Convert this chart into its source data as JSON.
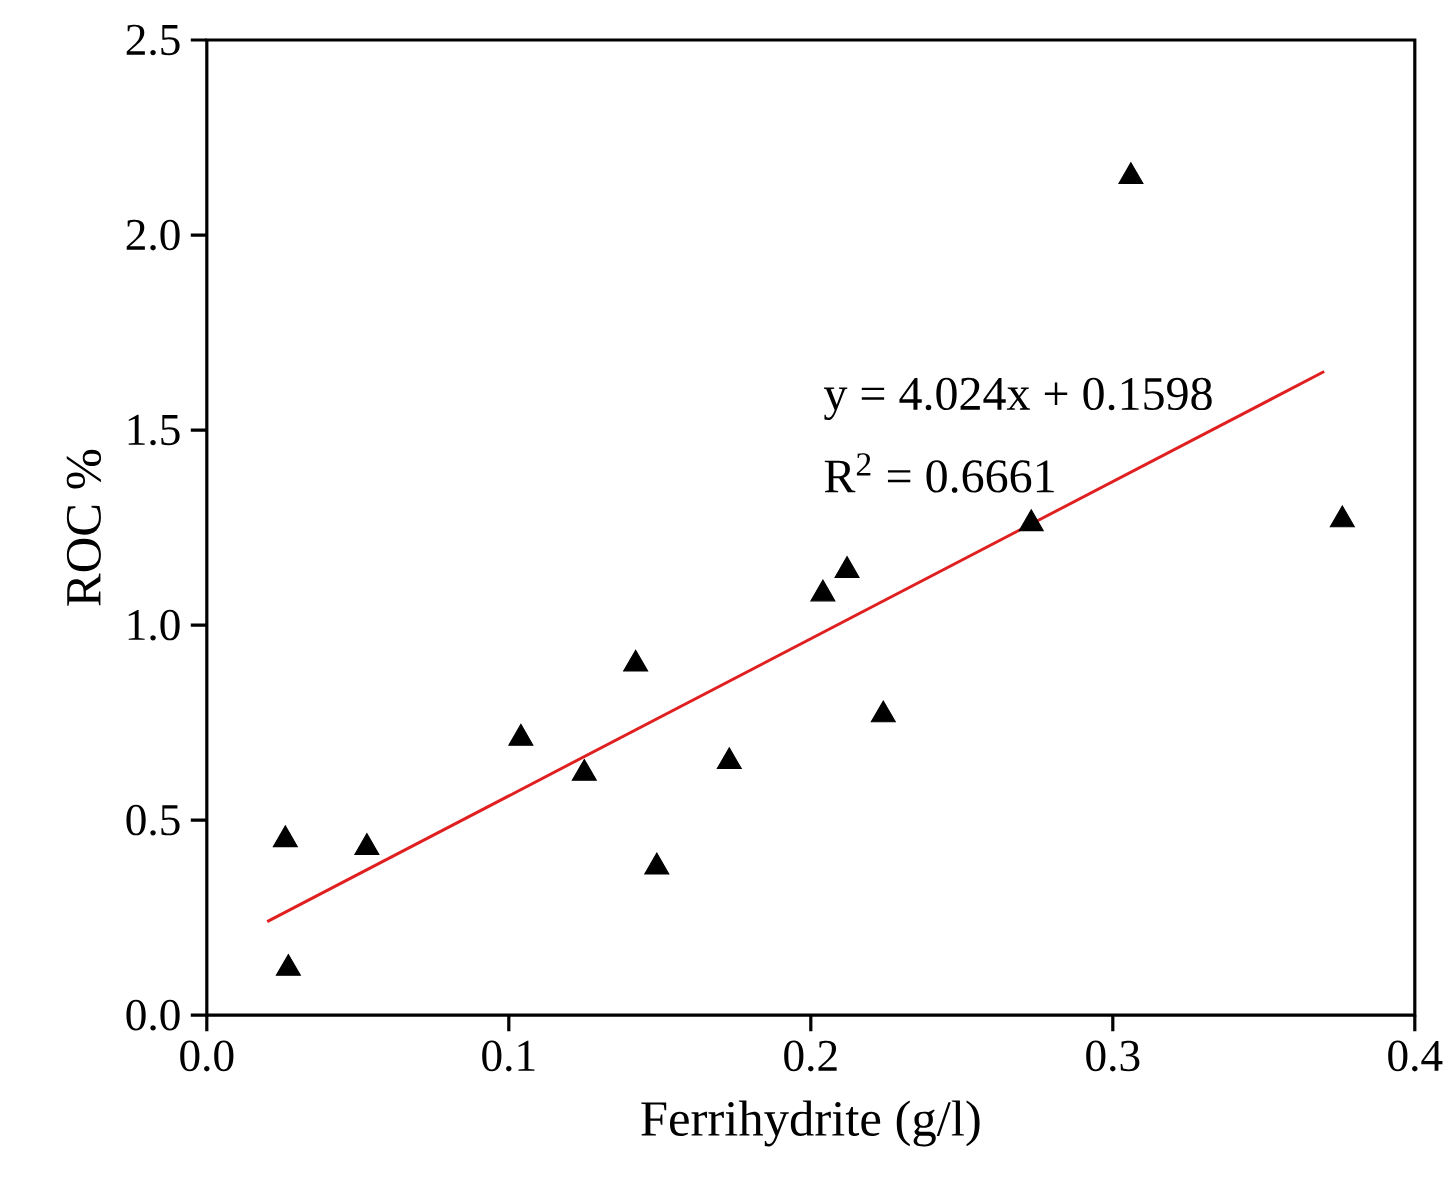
{
  "chart_data": {
    "type": "scatter",
    "xlabel": "Ferrihydrite (g/l)",
    "ylabel": "ROC %",
    "xlim": [
      0,
      0.4
    ],
    "xticks": [
      {
        "value": 0,
        "label": "0.0"
      },
      0.1,
      0.2,
      0.3,
      0.4
    ],
    "ylim": [
      0,
      2.5
    ],
    "yticks": [
      {
        "value": 0,
        "label": "0.0"
      },
      0.5,
      {
        "value": 1,
        "label": "1.0"
      },
      1.5,
      {
        "value": 2,
        "label": "2.0"
      },
      2.5
    ],
    "marker": "triangle",
    "annotations": [
      "y = 4.024x + 0.1598",
      "R$^{2}$ = 0.6661"
    ],
    "series": [
      {
        "color": "#000000",
        "x": [
          0.026,
          0.027,
          0.053,
          0.104,
          0.125,
          0.142,
          0.149,
          0.173,
          0.204,
          0.212,
          0.224,
          0.273,
          0.306,
          0.376
        ],
        "values": [
          0.45,
          0.12,
          0.43,
          0.71,
          0.62,
          0.9,
          0.38,
          0.65,
          1.08,
          1.14,
          0.77,
          1.26,
          2.15,
          1.27
        ]
      },
      {
        "type": "line",
        "color": "#e02020",
        "marker": "none",
        "x": [
          0.02,
          0.37
        ],
        "values": [
          0.24,
          1.65
        ]
      }
    ]
  }
}
